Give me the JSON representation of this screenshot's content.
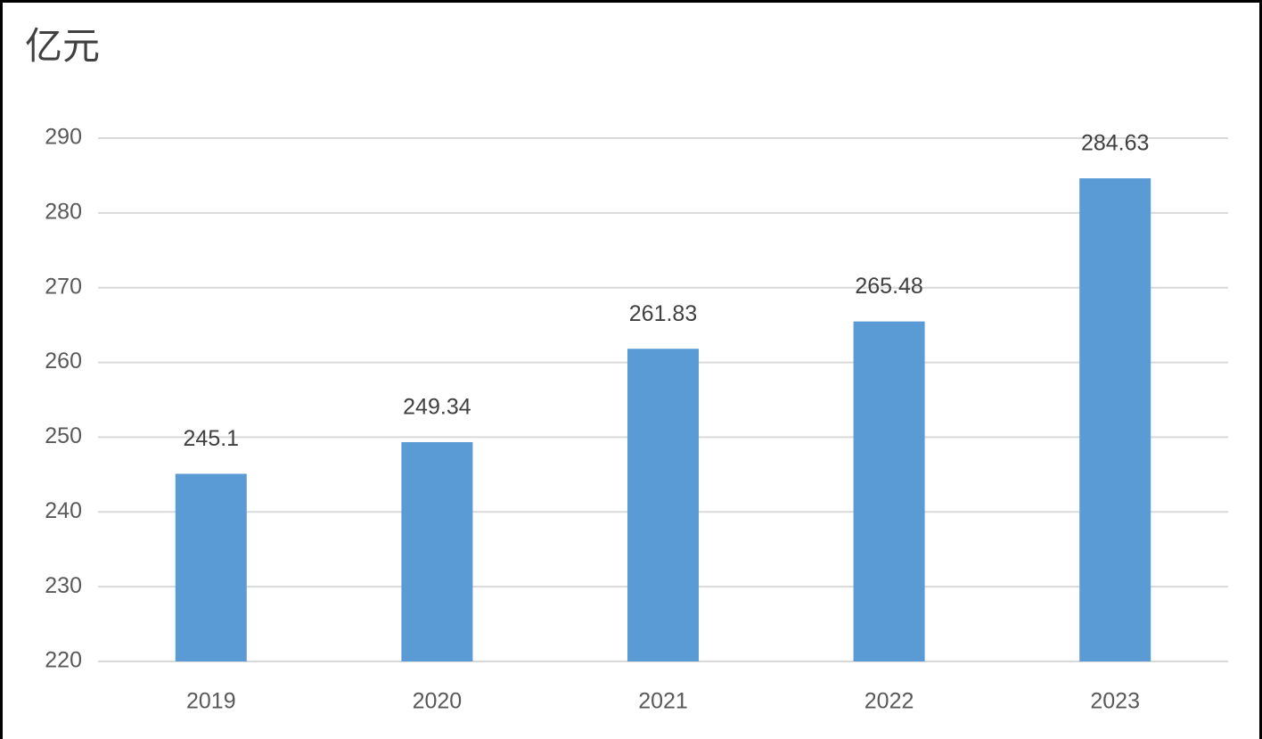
{
  "chart_data": {
    "type": "bar",
    "ylabel": "亿元",
    "categories": [
      "2019",
      "2020",
      "2021",
      "2022",
      "2023"
    ],
    "values": [
      245.1,
      249.34,
      261.83,
      265.48,
      284.63
    ],
    "color": "#5b9bd5",
    "ylim": [
      220,
      290
    ],
    "yticks": [
      220,
      230,
      240,
      250,
      260,
      270,
      280,
      290
    ],
    "grid": true
  }
}
